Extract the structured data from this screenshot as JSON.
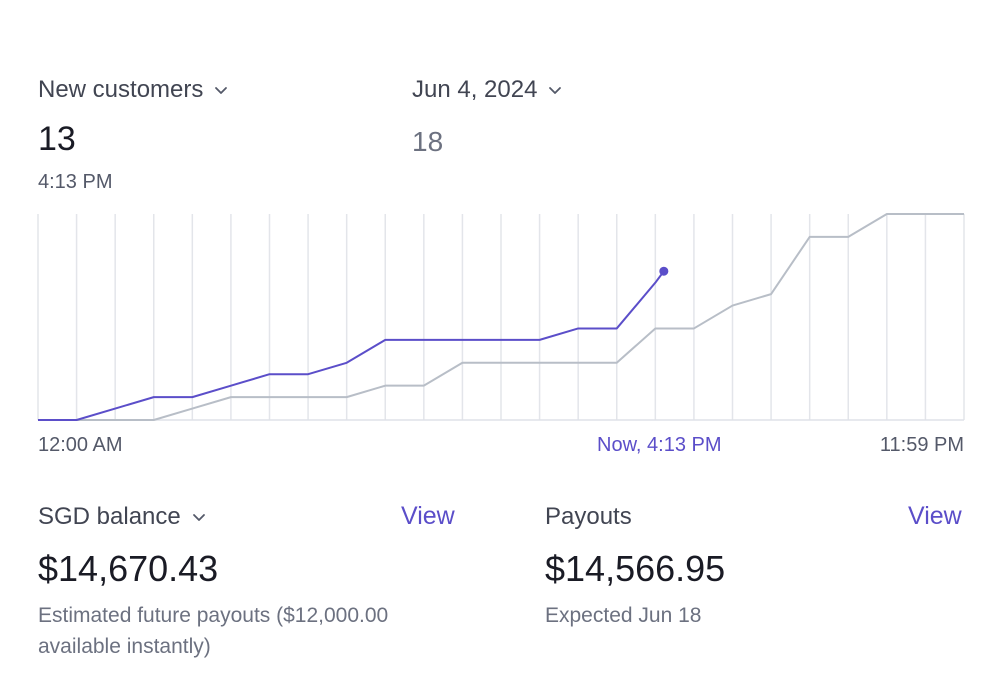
{
  "metric": {
    "label": "New customers",
    "value": "13",
    "time": "4:13 PM"
  },
  "compare": {
    "label": "Jun 4, 2024",
    "value": "18"
  },
  "chart_data": {
    "type": "line",
    "x_unit": "hour of day (0–24)",
    "xlabels": {
      "start": "12:00 AM",
      "now": "Now, 4:13 PM",
      "end": "11:59 PM"
    },
    "x_range": [
      0,
      24
    ],
    "ylim": [
      0,
      18
    ],
    "grid": "vertical lines every hour",
    "series": [
      {
        "color": "#5b4ec9",
        "points": [
          [
            0,
            0
          ],
          [
            1,
            0
          ],
          [
            2,
            1
          ],
          [
            3,
            2
          ],
          [
            4,
            2
          ],
          [
            5,
            3
          ],
          [
            6,
            4
          ],
          [
            7,
            4
          ],
          [
            8,
            5
          ],
          [
            9,
            7
          ],
          [
            10,
            7
          ],
          [
            11,
            7
          ],
          [
            12,
            7
          ],
          [
            13,
            7
          ],
          [
            14,
            8
          ],
          [
            15,
            8
          ],
          [
            16,
            12
          ],
          [
            16.22,
            13
          ]
        ]
      },
      {
        "color": "#b8bec7",
        "points": [
          [
            0,
            0
          ],
          [
            2,
            0
          ],
          [
            3,
            0
          ],
          [
            4,
            1
          ],
          [
            5,
            2
          ],
          [
            6,
            2
          ],
          [
            7,
            2
          ],
          [
            8,
            2
          ],
          [
            9,
            3
          ],
          [
            10,
            3
          ],
          [
            11,
            5
          ],
          [
            12,
            5
          ],
          [
            13,
            5
          ],
          [
            14,
            5
          ],
          [
            15,
            5
          ],
          [
            16,
            8
          ],
          [
            17,
            8
          ],
          [
            18,
            10
          ],
          [
            19,
            11
          ],
          [
            20,
            16
          ],
          [
            21,
            16
          ],
          [
            22,
            18
          ],
          [
            23,
            18
          ],
          [
            24,
            18
          ]
        ]
      }
    ]
  },
  "balance": {
    "title": "SGD balance",
    "link": "View",
    "amount": "$14,670.43",
    "note_line1": "Estimated future payouts ($12,000.00",
    "note_line2": "available instantly)"
  },
  "payouts": {
    "title": "Payouts",
    "link": "View",
    "amount": "$14,566.95",
    "note": "Expected Jun 18"
  },
  "icons": {
    "dropdown": "chevron-down-icon",
    "marker": "current-point-dot"
  }
}
